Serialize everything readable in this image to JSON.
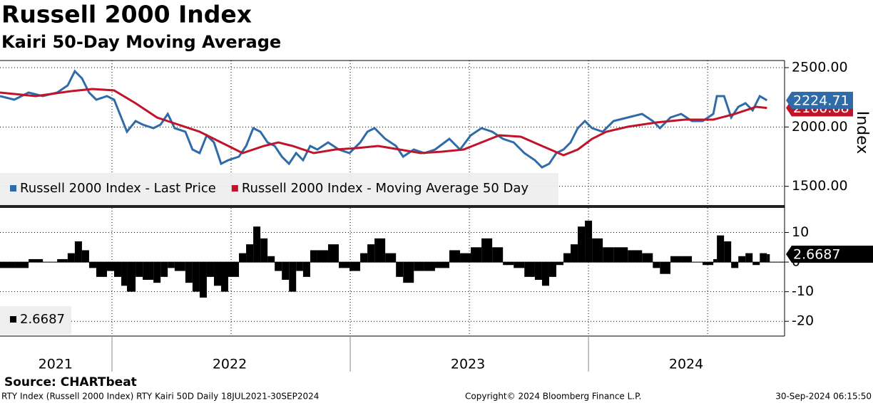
{
  "title": "Russell 2000 Index",
  "subtitle": "Kairi 50-Day Moving Average",
  "source": "Source: CHARTbeat",
  "footer": {
    "left": "RTY Index (Russell 2000 Index) RTY Kairi 50D  Daily 18JUL2021-30SEP2024",
    "center": "Copyright© 2024 Bloomberg Finance L.P.",
    "right": "30-Sep-2024 06:15:50"
  },
  "chart_data": [
    {
      "type": "line",
      "ylabel": "Index",
      "xlim": [
        2021.53,
        2024.823
      ],
      "xticks": [
        {
          "value": 2021.763,
          "label": "2021"
        },
        {
          "value": 2022.494,
          "label": "2022"
        },
        {
          "value": 2023.494,
          "label": "2023"
        },
        {
          "value": 2024.41,
          "label": "2024"
        }
      ],
      "xgrid": [
        2022,
        2022.5,
        2023,
        2023.5,
        2024,
        2024.5
      ],
      "ylim": [
        1342,
        2560
      ],
      "yticks": [
        {
          "value": 2500,
          "label": "2500.00"
        },
        {
          "value": 2000,
          "label": "2000.00"
        },
        {
          "value": 1500,
          "label": "1500.00"
        }
      ],
      "grid": true,
      "series": [
        {
          "name": "Russell 2000 Index - Last Price",
          "color": "#2f6ba8",
          "last_label": "2224.71",
          "x": [
            2021.53,
            2021.59,
            2021.65,
            2021.71,
            2021.77,
            2021.814,
            2021.844,
            2021.874,
            2021.904,
            2021.934,
            2021.979,
            2022.009,
            2022.039,
            2022.063,
            2022.099,
            2022.129,
            2022.174,
            2022.204,
            2022.234,
            2022.263,
            2022.308,
            2022.338,
            2022.368,
            2022.398,
            2022.428,
            2022.458,
            2022.488,
            2022.533,
            2022.563,
            2022.593,
            2022.623,
            2022.653,
            2022.683,
            2022.713,
            2022.743,
            2022.773,
            2022.802,
            2022.832,
            2022.862,
            2022.907,
            2022.952,
            2022.997,
            2023.042,
            2023.072,
            2023.102,
            2023.147,
            2023.192,
            2023.222,
            2023.267,
            2023.311,
            2023.356,
            2023.416,
            2023.461,
            2023.506,
            2023.551,
            2023.596,
            2023.641,
            2023.686,
            2023.731,
            2023.775,
            2023.805,
            2023.835,
            2023.865,
            2023.895,
            2023.925,
            2023.955,
            2023.985,
            2024.015,
            2024.06,
            2024.105,
            2024.165,
            2024.225,
            2024.27,
            2024.3,
            2024.344,
            2024.389,
            2024.434,
            2024.479,
            2024.524,
            2024.539,
            2024.569,
            2024.599,
            2024.629,
            2024.659,
            2024.689,
            2024.719,
            2024.749
          ],
          "values": [
            2260,
            2230,
            2290,
            2260,
            2290,
            2350,
            2470,
            2410,
            2290,
            2230,
            2260,
            2230,
            2080,
            1960,
            2050,
            2020,
            1990,
            2020,
            2110,
            1990,
            1960,
            1810,
            1780,
            1930,
            1870,
            1690,
            1720,
            1750,
            1840,
            1990,
            1960,
            1870,
            1840,
            1750,
            1690,
            1780,
            1720,
            1840,
            1810,
            1870,
            1810,
            1780,
            1870,
            1960,
            1990,
            1900,
            1840,
            1750,
            1810,
            1780,
            1810,
            1900,
            1810,
            1930,
            1990,
            1960,
            1900,
            1870,
            1780,
            1720,
            1660,
            1690,
            1780,
            1810,
            1870,
            1990,
            2050,
            1990,
            1960,
            2050,
            2080,
            2110,
            2050,
            1990,
            2080,
            2110,
            2050,
            2050,
            2110,
            2260,
            2260,
            2080,
            2170,
            2200,
            2140,
            2260,
            2224.71
          ]
        },
        {
          "name": "Russell 2000 Index - Moving Average 50 Day",
          "color": "#c0142a",
          "last_label": "2160.68",
          "x": [
            2021.53,
            2021.68,
            2021.829,
            2021.919,
            2022.009,
            2022.099,
            2022.189,
            2022.278,
            2022.368,
            2022.458,
            2022.548,
            2022.638,
            2022.698,
            2022.758,
            2022.847,
            2022.937,
            2023.027,
            2023.117,
            2023.207,
            2023.296,
            2023.386,
            2023.476,
            2023.566,
            2023.626,
            2023.716,
            2023.805,
            2023.895,
            2023.955,
            2024.015,
            2024.075,
            2024.165,
            2024.284,
            2024.404,
            2024.524,
            2024.614,
            2024.704,
            2024.749
          ],
          "values": [
            2290,
            2260,
            2302,
            2320,
            2308,
            2200,
            2080,
            2020,
            1960,
            1870,
            1780,
            1840,
            1870,
            1840,
            1780,
            1810,
            1822,
            1840,
            1810,
            1780,
            1792,
            1810,
            1882,
            1930,
            1918,
            1840,
            1762,
            1810,
            1900,
            1960,
            2002,
            2038,
            2062,
            2062,
            2110,
            2170,
            2160.68
          ]
        }
      ]
    },
    {
      "type": "bar",
      "xlim": [
        2021.53,
        2024.823
      ],
      "xgrid": [
        2022,
        2022.5,
        2023,
        2023.5,
        2024,
        2024.5
      ],
      "ylim": [
        -25,
        18.3
      ],
      "yticks": [
        10,
        0,
        -10,
        -20
      ],
      "grid": true,
      "series": [
        {
          "legend_label": "2.6687",
          "color": "#000000",
          "last_label": "2.6687",
          "x": [
            2021.53,
            2021.59,
            2021.65,
            2021.71,
            2021.77,
            2021.814,
            2021.844,
            2021.874,
            2021.904,
            2021.934,
            2021.979,
            2022.009,
            2022.039,
            2022.063,
            2022.099,
            2022.129,
            2022.174,
            2022.204,
            2022.234,
            2022.263,
            2022.308,
            2022.338,
            2022.368,
            2022.398,
            2022.428,
            2022.458,
            2022.488,
            2022.533,
            2022.563,
            2022.593,
            2022.623,
            2022.653,
            2022.683,
            2022.713,
            2022.743,
            2022.773,
            2022.802,
            2022.832,
            2022.862,
            2022.907,
            2022.952,
            2022.997,
            2023.042,
            2023.072,
            2023.102,
            2023.147,
            2023.192,
            2023.222,
            2023.267,
            2023.311,
            2023.356,
            2023.416,
            2023.461,
            2023.506,
            2023.551,
            2023.596,
            2023.641,
            2023.686,
            2023.731,
            2023.775,
            2023.805,
            2023.835,
            2023.865,
            2023.895,
            2023.925,
            2023.955,
            2023.985,
            2024.015,
            2024.06,
            2024.105,
            2024.165,
            2024.225,
            2024.27,
            2024.3,
            2024.344,
            2024.389,
            2024.434,
            2024.479,
            2024.524,
            2024.539,
            2024.569,
            2024.599,
            2024.629,
            2024.659,
            2024.689,
            2024.719,
            2024.749
          ],
          "values": [
            -2,
            -2,
            1,
            0,
            1,
            3,
            7,
            4,
            -2,
            -5,
            -3,
            -5,
            -8,
            -10,
            -5,
            -6,
            -7,
            -5,
            -2,
            -3,
            -7,
            -10,
            -12,
            -5,
            -8,
            -10,
            -5,
            3,
            6,
            12,
            8,
            2,
            -3,
            -6,
            -10,
            -3,
            -5,
            4,
            4,
            6,
            -2,
            -3,
            3,
            6,
            8,
            3,
            -5,
            -7,
            -3,
            -3,
            -2,
            4,
            3,
            5,
            8,
            5,
            -1,
            -2,
            -5,
            -6,
            -8,
            -5,
            -1,
            3,
            6,
            12,
            14,
            8,
            5,
            5,
            4,
            3,
            -2,
            -4,
            2,
            2,
            0,
            -1,
            1,
            9,
            7,
            -2,
            2,
            3,
            -1,
            3,
            2.6687
          ]
        }
      ]
    }
  ]
}
